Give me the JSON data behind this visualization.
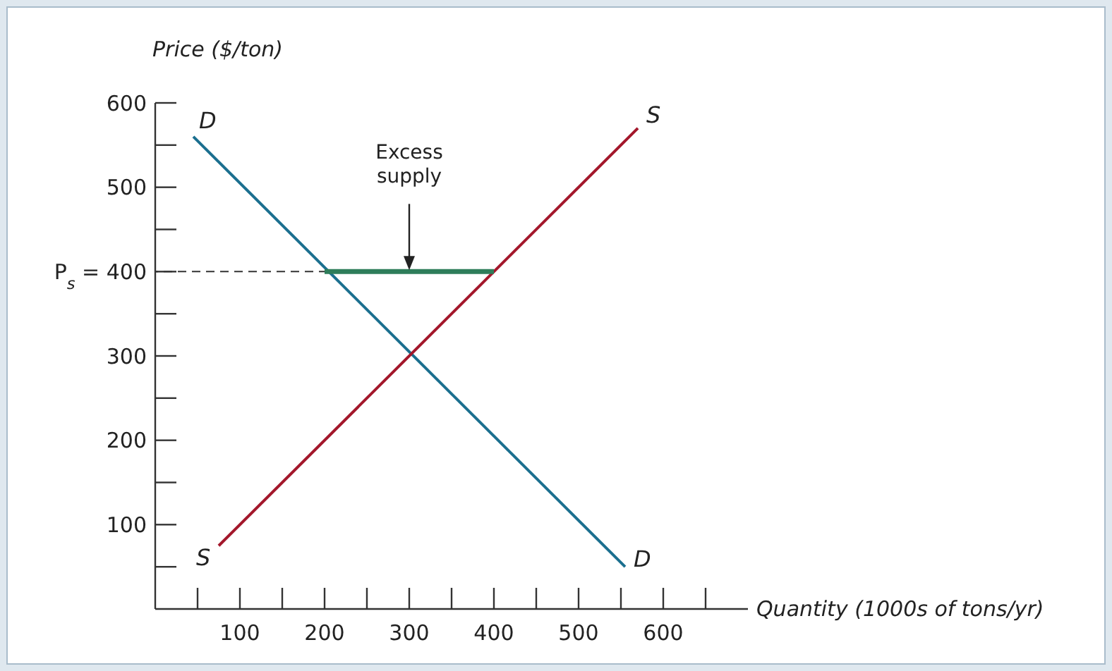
{
  "chart_data": {
    "type": "line",
    "ylabel": "Price ($/ton)",
    "xlabel": "Quantity (1000s of tons/yr)",
    "xlim": [
      0,
      700
    ],
    "ylim": [
      0,
      600
    ],
    "xticks": [
      {
        "value": 50,
        "label": null
      },
      100,
      {
        "value": 150,
        "label": null
      },
      200,
      {
        "value": 250,
        "label": null
      },
      300,
      {
        "value": 350,
        "label": null
      },
      400,
      {
        "value": 450,
        "label": null
      },
      500,
      {
        "value": 550,
        "label": null
      },
      600,
      {
        "value": 650,
        "label": null
      }
    ],
    "yticks": [
      {
        "value": 50,
        "label": null
      },
      100,
      {
        "value": 150,
        "label": null
      },
      200,
      {
        "value": 250,
        "label": null
      },
      300,
      {
        "value": 350,
        "label": null
      },
      {
        "value": 400,
        "label": "P$_{s}$ = 400"
      },
      {
        "value": 450,
        "label": null
      },
      500,
      {
        "value": 550,
        "label": null
      },
      600
    ],
    "grid": false,
    "legend": false,
    "marker": "none",
    "annotations": [
      {
        "text": "Excess supply",
        "x": 300,
        "y": 400
      }
    ],
    "series": [
      {
        "name": "D",
        "color": "#1b6f8f",
        "x": [
          45,
          555
        ],
        "values": [
          560,
          50
        ]
      },
      {
        "name": "S",
        "color": "#a3172b",
        "x": [
          75,
          570
        ],
        "values": [
          75,
          570
        ]
      },
      {
        "color": "#2e7d5a",
        "x": [
          200,
          400
        ],
        "values": [
          400,
          400
        ]
      },
      {
        "color": "#333333",
        "x": [
          0,
          200
        ],
        "values": [
          400,
          400
        ],
        "line_style": "dashed"
      }
    ]
  }
}
